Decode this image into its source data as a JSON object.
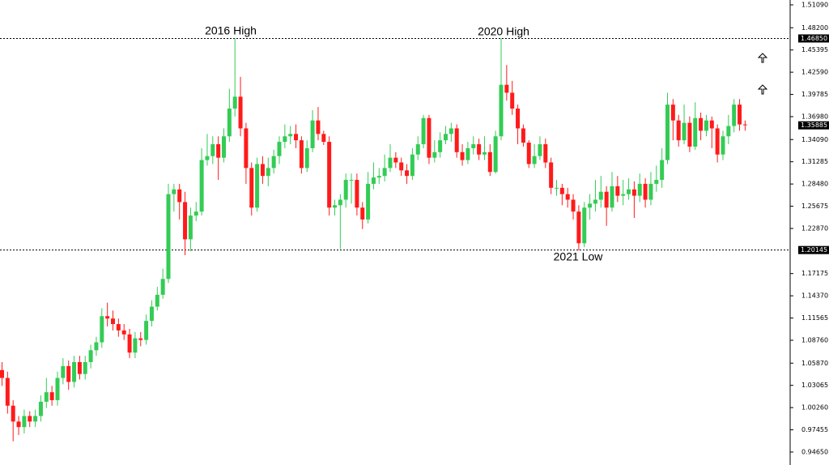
{
  "chart_data": {
    "type": "candlestick",
    "up_color": "#33cc55",
    "down_color": "#ff1a1a",
    "ylim": [
      0.9465,
      1.5109
    ],
    "yticks": [
      {
        "value": 1.5109,
        "label": "1.51090"
      },
      {
        "value": 1.482,
        "label": "1.48200"
      },
      {
        "value": 1.45395,
        "label": "1.45395"
      },
      {
        "value": 1.4259,
        "label": "1.42590"
      },
      {
        "value": 1.39785,
        "label": "1.39785"
      },
      {
        "value": 1.3698,
        "label": "1.36980"
      },
      {
        "value": 1.3409,
        "label": "1.34090"
      },
      {
        "value": 1.31285,
        "label": "1.31285"
      },
      {
        "value": 1.2848,
        "label": "1.28480"
      },
      {
        "value": 1.25675,
        "label": "1.25675"
      },
      {
        "value": 1.2287,
        "label": "1.22870"
      },
      {
        "value": 1.17175,
        "label": "1.17175"
      },
      {
        "value": 1.1437,
        "label": "1.14370"
      },
      {
        "value": 1.11565,
        "label": "1.11565"
      },
      {
        "value": 1.0876,
        "label": "1.08760"
      },
      {
        "value": 1.0587,
        "label": "1.05870"
      },
      {
        "value": 1.03065,
        "label": "1.03065"
      },
      {
        "value": 1.0026,
        "label": "1.00260"
      },
      {
        "value": 0.97455,
        "label": "0.97455"
      },
      {
        "value": 0.9465,
        "label": "0.94650"
      }
    ],
    "levels": [
      {
        "value": 1.4685,
        "label": "1.46850"
      },
      {
        "value": 1.20145,
        "label": "1.20145"
      }
    ],
    "last_price": {
      "value": 1.35885,
      "label": "1.35885"
    },
    "annotations": [
      "2016 High",
      "2020 High",
      "2021 Low"
    ],
    "open": [
      1.05,
      1.04,
      1.005,
      0.985,
      0.978,
      0.992,
      0.985,
      0.992,
      1.01,
      1.022,
      1.012,
      1.04,
      1.055,
      1.035,
      1.06,
      1.045,
      1.06,
      1.075,
      1.085,
      1.118,
      1.115,
      1.108,
      1.1,
      1.095,
      1.072,
      1.09,
      1.088,
      1.112,
      1.13,
      1.145,
      1.165,
      1.272,
      1.278,
      1.262,
      1.215,
      1.245,
      1.25,
      1.315,
      1.32,
      1.335,
      1.318,
      1.345,
      1.38,
      1.395,
      1.355,
      1.305,
      1.255,
      1.31,
      1.295,
      1.305,
      1.32,
      1.338,
      1.345,
      1.348,
      1.34,
      1.305,
      1.33,
      1.365,
      1.348,
      1.338,
      1.255,
      1.258,
      1.265,
      1.29,
      1.29,
      1.255,
      1.24,
      1.285,
      1.293,
      1.295,
      1.305,
      1.318,
      1.312,
      1.302,
      1.295,
      1.322,
      1.335,
      1.368,
      1.318,
      1.325,
      1.34,
      1.348,
      1.355,
      1.325,
      1.315,
      1.33,
      1.335,
      1.322,
      1.325,
      1.3,
      1.345,
      1.41,
      1.4,
      1.38,
      1.355,
      1.337,
      1.31,
      1.32,
      1.335,
      1.312,
      1.28,
      1.28,
      1.272,
      1.265,
      1.25,
      1.21,
      1.255,
      1.26,
      1.265,
      1.275,
      1.255,
      1.282,
      1.27,
      1.272,
      1.278,
      1.27,
      1.285,
      1.265,
      1.285,
      1.29,
      1.315,
      1.385,
      1.365,
      1.34,
      1.362,
      1.332,
      1.368,
      1.352,
      1.365,
      1.355,
      1.322,
      1.345,
      1.358,
      1.385,
      1.36
    ],
    "high": [
      1.06,
      1.048,
      1.012,
      0.992,
      1.0,
      0.998,
      1.0,
      1.018,
      1.04,
      1.03,
      1.048,
      1.065,
      1.062,
      1.068,
      1.068,
      1.068,
      1.082,
      1.092,
      1.128,
      1.135,
      1.125,
      1.115,
      1.108,
      1.102,
      1.098,
      1.098,
      1.12,
      1.138,
      1.155,
      1.178,
      1.285,
      1.285,
      1.285,
      1.275,
      1.255,
      1.262,
      1.33,
      1.348,
      1.345,
      1.345,
      1.355,
      1.405,
      1.469,
      1.42,
      1.362,
      1.312,
      1.318,
      1.32,
      1.318,
      1.328,
      1.345,
      1.36,
      1.358,
      1.36,
      1.345,
      1.34,
      1.378,
      1.382,
      1.352,
      1.345,
      1.265,
      1.272,
      1.298,
      1.298,
      1.298,
      1.262,
      1.3,
      1.312,
      1.305,
      1.322,
      1.335,
      1.325,
      1.318,
      1.31,
      1.33,
      1.345,
      1.372,
      1.372,
      1.34,
      1.35,
      1.358,
      1.362,
      1.36,
      1.335,
      1.338,
      1.345,
      1.342,
      1.345,
      1.335,
      1.352,
      1.469,
      1.435,
      1.415,
      1.385,
      1.36,
      1.34,
      1.335,
      1.345,
      1.342,
      1.318,
      1.29,
      1.285,
      1.28,
      1.272,
      1.258,
      1.262,
      1.272,
      1.29,
      1.295,
      1.282,
      1.3,
      1.295,
      1.29,
      1.292,
      1.288,
      1.298,
      1.292,
      1.3,
      1.308,
      1.33,
      1.4,
      1.392,
      1.372,
      1.385,
      1.37,
      1.388,
      1.375,
      1.372,
      1.37,
      1.36,
      1.352,
      1.372,
      1.392,
      1.392,
      1.365
    ],
    "low": [
      1.03,
      0.995,
      0.96,
      0.968,
      0.97,
      0.978,
      0.978,
      0.985,
      1.002,
      1.005,
      1.005,
      1.032,
      1.025,
      1.028,
      1.038,
      1.038,
      1.052,
      1.068,
      1.078,
      1.105,
      1.1,
      1.092,
      1.088,
      1.065,
      1.065,
      1.08,
      1.082,
      1.105,
      1.125,
      1.14,
      1.16,
      1.25,
      1.24,
      1.195,
      1.2,
      1.238,
      1.245,
      1.308,
      1.31,
      1.29,
      1.312,
      1.338,
      1.37,
      1.345,
      1.285,
      1.245,
      1.25,
      1.285,
      1.282,
      1.298,
      1.31,
      1.33,
      1.335,
      1.33,
      1.298,
      1.3,
      1.325,
      1.34,
      1.334,
      1.245,
      1.245,
      1.203,
      1.255,
      1.26,
      1.245,
      1.228,
      1.235,
      1.278,
      1.285,
      1.288,
      1.3,
      1.305,
      1.295,
      1.285,
      1.29,
      1.315,
      1.33,
      1.31,
      1.312,
      1.318,
      1.335,
      1.338,
      1.318,
      1.308,
      1.31,
      1.322,
      1.315,
      1.315,
      1.295,
      1.298,
      1.34,
      1.39,
      1.372,
      1.335,
      1.332,
      1.305,
      1.305,
      1.315,
      1.305,
      1.272,
      1.27,
      1.258,
      1.255,
      1.24,
      1.201,
      1.205,
      1.24,
      1.25,
      1.255,
      1.232,
      1.25,
      1.262,
      1.258,
      1.265,
      1.242,
      1.262,
      1.255,
      1.258,
      1.275,
      1.28,
      1.31,
      1.34,
      1.332,
      1.335,
      1.325,
      1.328,
      1.34,
      1.345,
      1.33,
      1.312,
      1.315,
      1.335,
      1.35,
      1.352,
      1.352
    ],
    "close": [
      1.04,
      1.005,
      0.985,
      0.978,
      0.992,
      0.985,
      0.992,
      1.01,
      1.022,
      1.012,
      1.04,
      1.055,
      1.035,
      1.06,
      1.045,
      1.06,
      1.075,
      1.085,
      1.118,
      1.115,
      1.108,
      1.1,
      1.095,
      1.072,
      1.09,
      1.088,
      1.112,
      1.13,
      1.145,
      1.165,
      1.272,
      1.278,
      1.262,
      1.215,
      1.245,
      1.25,
      1.315,
      1.32,
      1.335,
      1.318,
      1.345,
      1.38,
      1.395,
      1.355,
      1.305,
      1.255,
      1.31,
      1.295,
      1.305,
      1.32,
      1.338,
      1.345,
      1.348,
      1.34,
      1.305,
      1.33,
      1.365,
      1.348,
      1.338,
      1.255,
      1.258,
      1.265,
      1.29,
      1.29,
      1.255,
      1.24,
      1.285,
      1.293,
      1.295,
      1.305,
      1.318,
      1.312,
      1.302,
      1.295,
      1.322,
      1.335,
      1.368,
      1.318,
      1.325,
      1.34,
      1.348,
      1.355,
      1.325,
      1.315,
      1.33,
      1.335,
      1.322,
      1.325,
      1.3,
      1.345,
      1.41,
      1.4,
      1.38,
      1.355,
      1.337,
      1.31,
      1.32,
      1.335,
      1.312,
      1.28,
      1.28,
      1.272,
      1.265,
      1.25,
      1.21,
      1.255,
      1.26,
      1.265,
      1.275,
      1.255,
      1.282,
      1.27,
      1.272,
      1.278,
      1.27,
      1.285,
      1.265,
      1.285,
      1.29,
      1.315,
      1.385,
      1.365,
      1.34,
      1.362,
      1.332,
      1.368,
      1.352,
      1.365,
      1.355,
      1.322,
      1.345,
      1.358,
      1.385,
      1.36,
      1.359
    ]
  }
}
